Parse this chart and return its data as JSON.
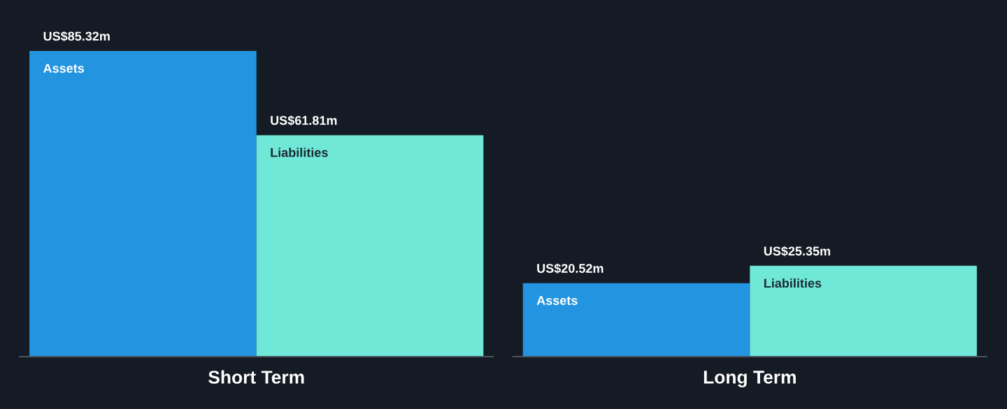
{
  "chart_data": {
    "type": "bar",
    "categories": [
      "Short Term",
      "Long Term"
    ],
    "series": [
      {
        "name": "Assets",
        "color": "#2394df",
        "values": [
          85320000,
          20520000
        ],
        "value_labels": [
          "US$85.32m",
          "US$20.52m"
        ]
      },
      {
        "name": "Liabilities",
        "color": "#70e8d8",
        "values": [
          61810000,
          25350000
        ],
        "value_labels": [
          "US$61.81m",
          "US$25.35m"
        ]
      }
    ]
  }
}
